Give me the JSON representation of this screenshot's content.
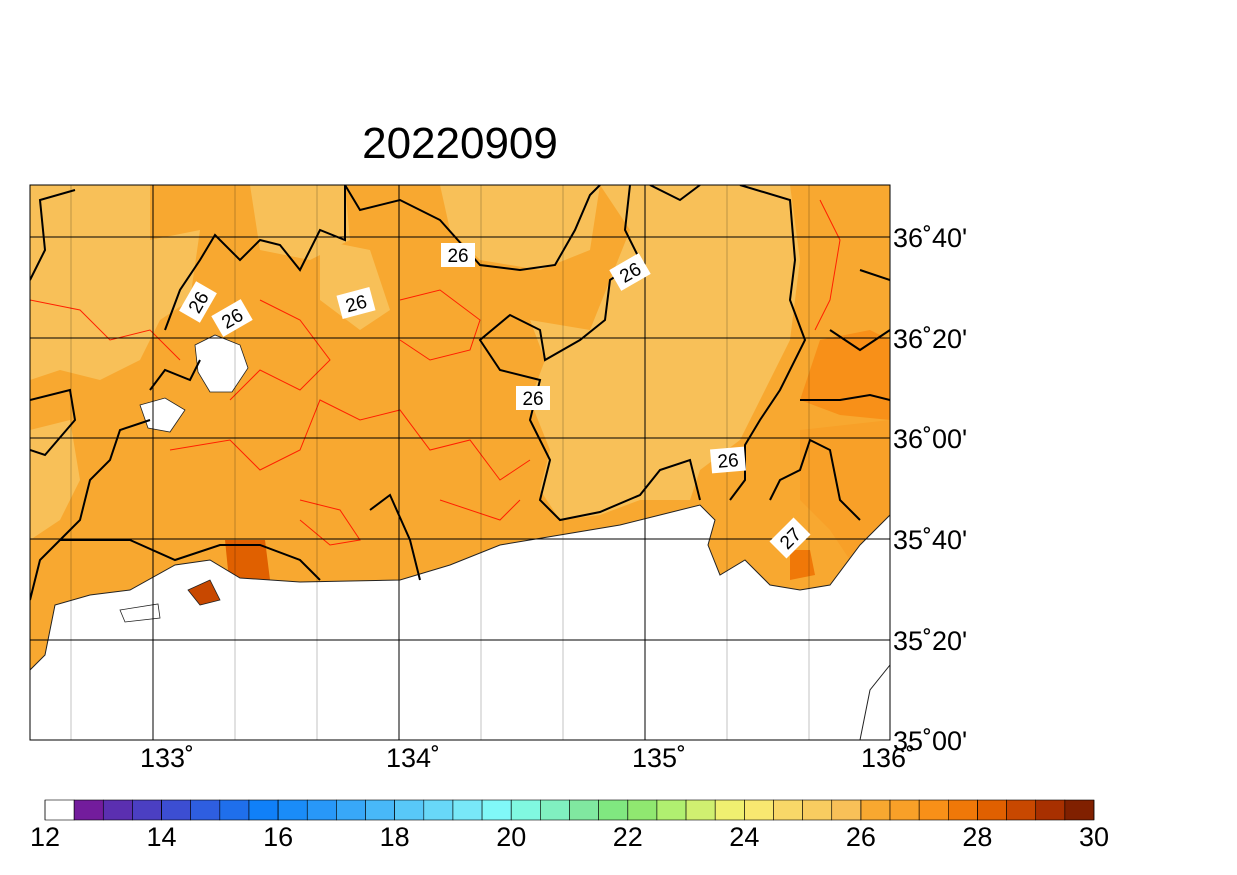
{
  "title": "20220909",
  "map": {
    "lon_labels": [
      "133˚",
      "134˚",
      "135˚",
      "136˚"
    ],
    "lat_labels": [
      "36˚40'",
      "36˚20'",
      "36˚00'",
      "35˚40'",
      "35˚20'",
      "35˚00'"
    ],
    "contour_labels": [
      "26",
      "26",
      "26",
      "26",
      "26",
      "26",
      "26",
      "27"
    ]
  },
  "colorbar": {
    "range": [
      12,
      30
    ],
    "ticks": [
      12,
      14,
      16,
      18,
      20,
      22,
      24,
      26,
      28,
      30
    ],
    "colors": [
      "#ffffff",
      "#731c9c",
      "#5b2fb0",
      "#4b3fc2",
      "#3c4ed2",
      "#2e5ee0",
      "#1f6fec",
      "#1080f8",
      "#1a8cf8",
      "#2898f8",
      "#38a8f8",
      "#48b8f8",
      "#58c8f8",
      "#68d8f8",
      "#78e8f8",
      "#80f8f8",
      "#80f8e0",
      "#80f0c0",
      "#80e8a0",
      "#80e880",
      "#90e870",
      "#b0f070",
      "#d0f070",
      "#f0f070",
      "#f8e870",
      "#f8d868",
      "#f8cc60",
      "#f8c058",
      "#f8a830",
      "#f8a028",
      "#f89018",
      "#f07808",
      "#e06000",
      "#c84800",
      "#a83000",
      "#802000"
    ]
  }
}
